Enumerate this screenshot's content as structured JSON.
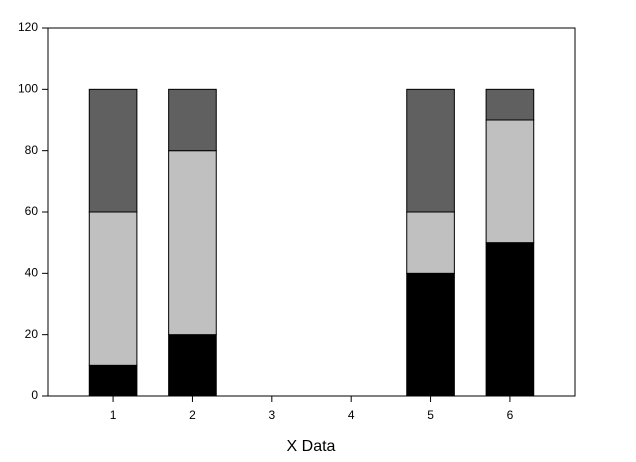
{
  "chart_data": {
    "type": "bar",
    "stacked": true,
    "x": [
      1,
      2,
      3,
      4,
      5,
      6
    ],
    "series": [
      {
        "color": "#000000",
        "values": [
          10,
          20,
          null,
          null,
          40,
          50
        ]
      },
      {
        "color": "#c0c0c0",
        "values": [
          50,
          60,
          null,
          null,
          20,
          40
        ]
      },
      {
        "color": "#606060",
        "values": [
          40,
          20,
          null,
          null,
          40,
          10
        ]
      }
    ],
    "xlabel": "X Data",
    "xlim": [
      0.18,
      6.82
    ],
    "xticks": [
      1,
      2,
      3,
      4,
      5,
      6
    ],
    "ylim": [
      0,
      120
    ],
    "yticks": [
      0,
      20,
      40,
      60,
      80,
      100,
      120
    ],
    "grid": false
  }
}
